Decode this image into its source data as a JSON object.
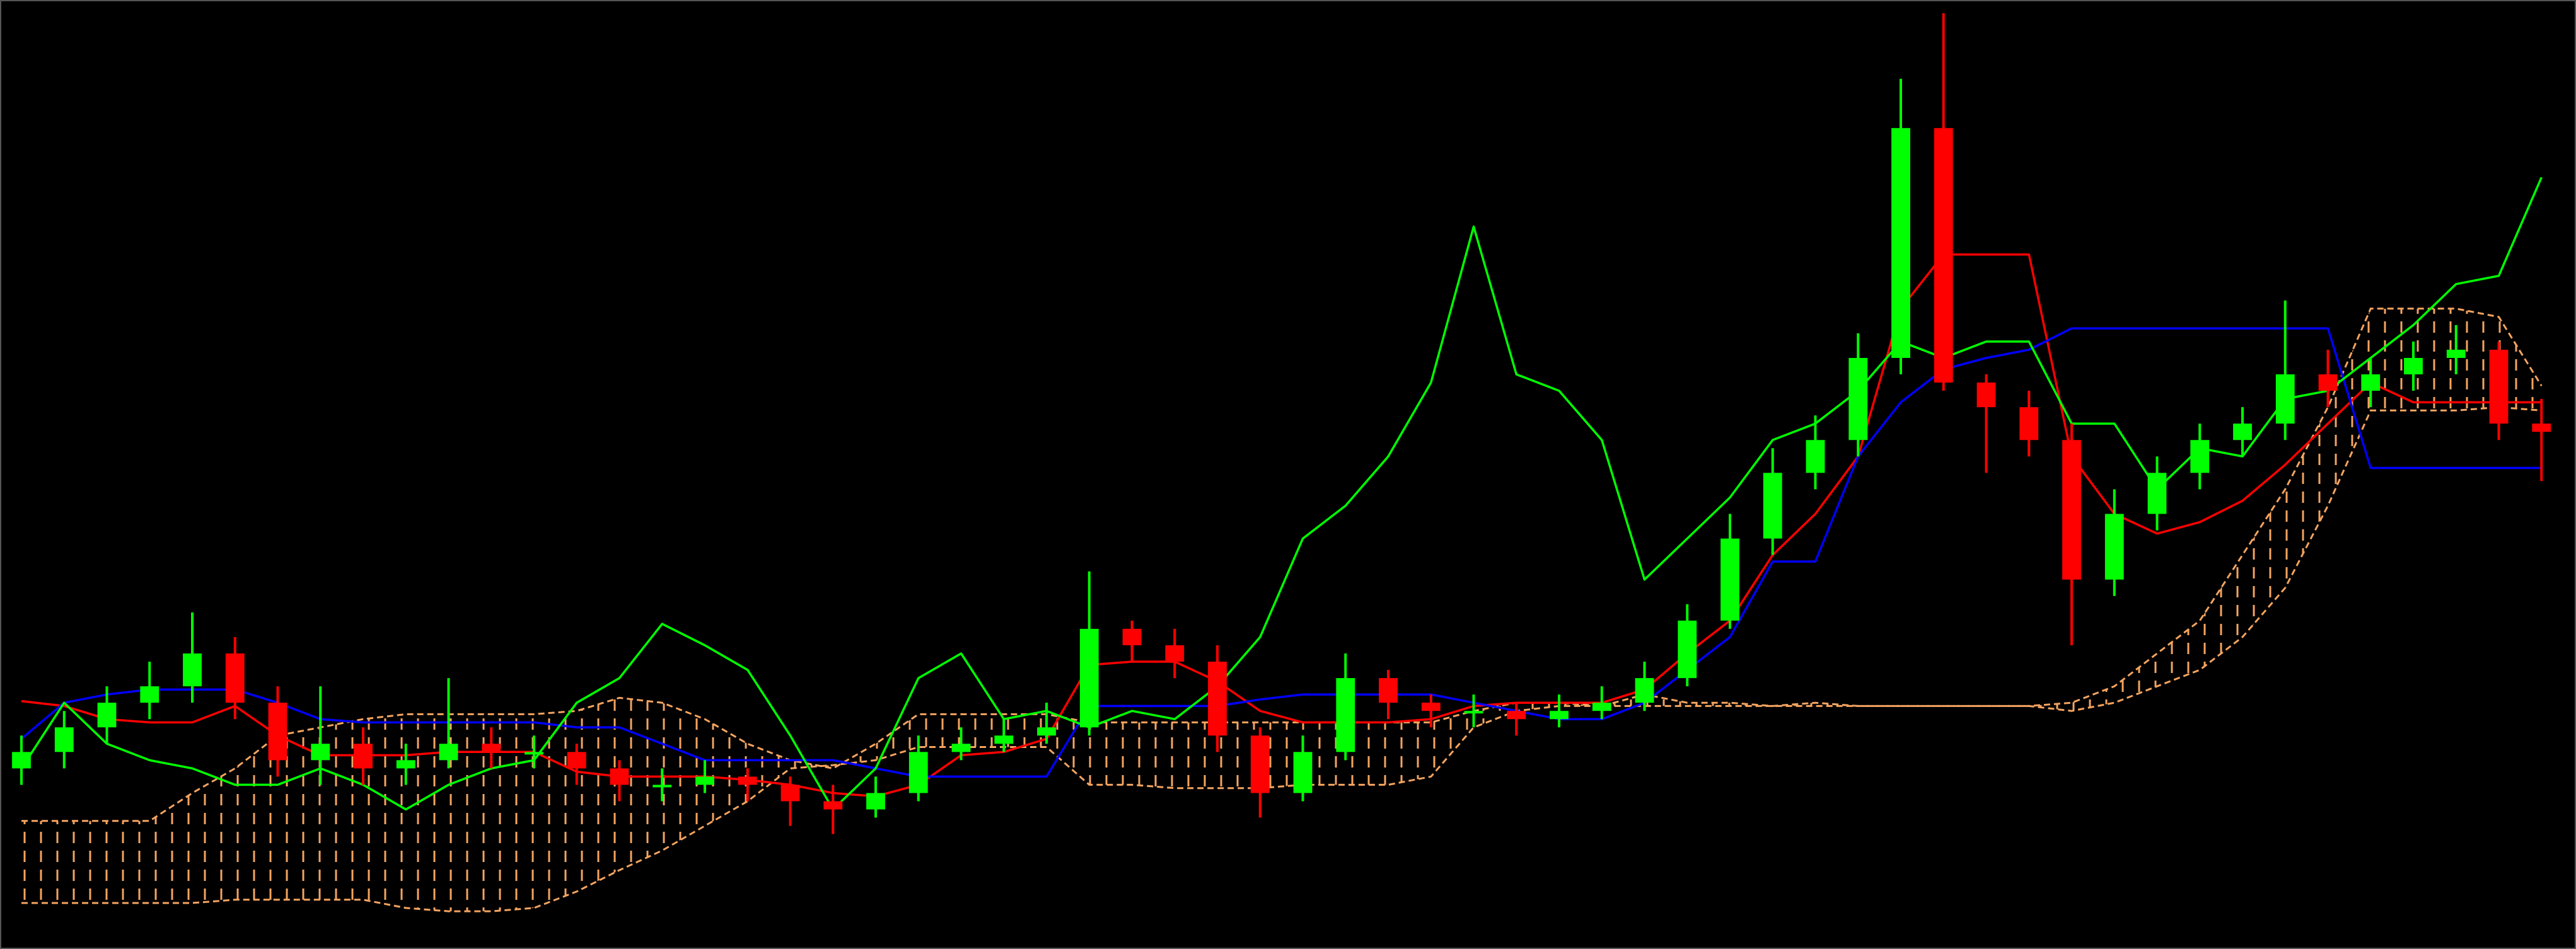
{
  "chart_data": {
    "type": "candlestick",
    "categories": [
      null,
      null,
      null,
      null,
      null,
      null,
      null,
      null,
      null,
      null,
      null,
      null,
      null,
      null,
      null,
      null,
      null,
      null,
      null,
      null,
      null,
      null,
      null,
      null,
      null,
      null,
      null,
      null,
      null,
      null,
      null,
      null,
      null,
      null,
      null,
      null,
      null,
      null,
      null,
      null,
      null,
      null,
      null,
      null,
      null,
      null,
      null,
      null,
      null,
      null,
      null,
      null,
      null,
      null,
      null,
      null,
      null,
      null,
      null,
      null
    ],
    "open": [
      110,
      120,
      135,
      150,
      160,
      180,
      150,
      115,
      125,
      110,
      115,
      125,
      120,
      120,
      110,
      100,
      100,
      105,
      100,
      90,
      85,
      95,
      120,
      125,
      130,
      135,
      195,
      185,
      175,
      130,
      95,
      120,
      165,
      150,
      145,
      145,
      140,
      145,
      150,
      165,
      200,
      250,
      290,
      310,
      360,
      500,
      345,
      330,
      310,
      225,
      265,
      290,
      310,
      320,
      350,
      340,
      350,
      360,
      365,
      320
    ],
    "high": [
      130,
      145,
      160,
      175,
      205,
      190,
      160,
      160,
      135,
      125,
      165,
      135,
      130,
      125,
      115,
      110,
      115,
      110,
      105,
      100,
      105,
      130,
      135,
      140,
      150,
      230,
      200,
      195,
      185,
      135,
      130,
      180,
      170,
      155,
      155,
      150,
      155,
      160,
      175,
      210,
      265,
      305,
      325,
      375,
      530,
      570,
      350,
      340,
      320,
      280,
      300,
      320,
      330,
      395,
      365,
      360,
      370,
      380,
      370,
      335
    ],
    "low": [
      100,
      110,
      125,
      140,
      150,
      140,
      105,
      100,
      100,
      100,
      110,
      110,
      110,
      100,
      90,
      90,
      95,
      90,
      75,
      70,
      80,
      90,
      115,
      120,
      125,
      130,
      175,
      165,
      120,
      80,
      90,
      115,
      140,
      135,
      135,
      130,
      135,
      140,
      145,
      160,
      195,
      240,
      280,
      300,
      350,
      340,
      290,
      300,
      185,
      215,
      255,
      280,
      300,
      310,
      330,
      330,
      340,
      350,
      310,
      285
    ],
    "close": [
      120,
      135,
      150,
      160,
      180,
      150,
      115,
      125,
      110,
      115,
      125,
      120,
      120,
      110,
      100,
      100,
      105,
      100,
      90,
      85,
      95,
      120,
      125,
      130,
      135,
      195,
      185,
      175,
      130,
      95,
      120,
      165,
      150,
      145,
      145,
      140,
      145,
      150,
      165,
      200,
      250,
      290,
      310,
      360,
      500,
      345,
      330,
      310,
      225,
      265,
      290,
      310,
      320,
      350,
      340,
      350,
      360,
      365,
      320,
      315
    ],
    "up_color": "#00ff00",
    "down_color": "#ff0000",
    "series": [
      {
        "color": "#ff0000",
        "values": [
          151,
          148,
          140,
          138,
          138,
          148,
          130,
          118,
          118,
          118,
          120,
          120,
          120,
          108,
          105,
          105,
          105,
          103,
          100,
          95,
          93,
          100,
          118,
          120,
          128,
          173,
          175,
          175,
          163,
          145,
          138,
          138,
          138,
          140,
          148,
          150,
          150,
          150,
          158,
          180,
          200,
          240,
          265,
          300,
          390,
          423,
          423,
          423,
          300,
          265,
          253,
          260,
          273,
          295,
          320,
          345,
          333,
          333,
          333,
          333
        ]
      },
      {
        "color": "#0000ff",
        "values": [
          128,
          150,
          155,
          158,
          158,
          158,
          150,
          140,
          138,
          138,
          138,
          138,
          138,
          135,
          135,
          125,
          115,
          115,
          115,
          115,
          110,
          105,
          105,
          105,
          105,
          148,
          148,
          148,
          148,
          152,
          155,
          155,
          155,
          155,
          150,
          145,
          140,
          140,
          150,
          170,
          190,
          236,
          236,
          300,
          333,
          353,
          360,
          365,
          378,
          378,
          378,
          378,
          378,
          378,
          378,
          293,
          293,
          293,
          293,
          293
        ]
      },
      {
        "color": "#00ff00",
        "values": [
          110,
          150,
          125,
          115,
          110,
          100,
          100,
          110,
          100,
          85,
          100,
          110,
          115,
          150,
          165,
          198,
          185,
          170,
          130,
          85,
          110,
          165,
          180,
          140,
          145,
          135,
          145,
          140,
          160,
          190,
          250,
          270,
          300,
          345,
          440,
          350,
          340,
          310,
          225,
          250,
          275,
          310,
          320,
          340,
          370,
          360,
          370,
          370,
          320,
          320,
          280,
          305,
          300,
          335,
          340,
          360,
          380,
          405,
          410,
          470
        ]
      }
    ],
    "cloud": {
      "color": "#f4a460",
      "span_a": [
        78,
        78,
        78,
        78,
        95,
        110,
        130,
        135,
        140,
        143,
        143,
        143,
        143,
        145,
        153,
        150,
        140,
        125,
        115,
        110,
        125,
        143,
        143,
        143,
        143,
        138,
        138,
        138,
        138,
        138,
        138,
        138,
        138,
        138,
        145,
        150,
        150,
        148,
        155,
        150,
        150,
        148,
        150,
        148,
        148,
        148,
        148,
        148,
        150,
        160,
        180,
        200,
        240,
        280,
        330,
        390,
        390,
        390,
        385,
        343
      ],
      "span_b": [
        28,
        28,
        28,
        28,
        28,
        30,
        30,
        30,
        30,
        25,
        23,
        23,
        25,
        35,
        48,
        60,
        75,
        90,
        110,
        112,
        115,
        123,
        123,
        123,
        123,
        100,
        100,
        98,
        98,
        98,
        100,
        100,
        100,
        105,
        135,
        145,
        148,
        148,
        148,
        148,
        148,
        148,
        148,
        148,
        148,
        148,
        148,
        148,
        145,
        150,
        160,
        170,
        190,
        220,
        270,
        328,
        328,
        328,
        330,
        328
      ]
    },
    "ylim": [
      0,
      578
    ]
  }
}
